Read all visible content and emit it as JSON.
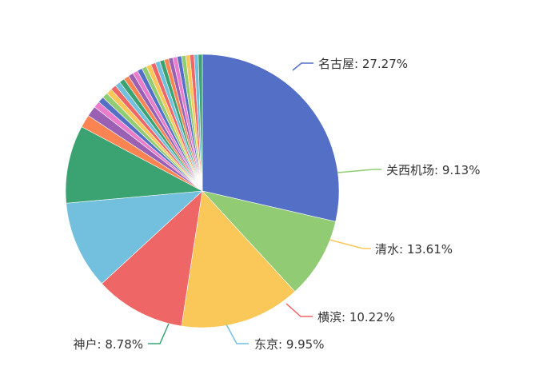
{
  "chart_data": {
    "type": "pie",
    "title": "",
    "slices": [
      {
        "label": "名古屋",
        "percent": 27.27,
        "display": "名古屋: 27.27%",
        "color": "#5470c6"
      },
      {
        "label": "关西机场",
        "percent": 9.13,
        "display": "关西机场: 9.13%",
        "color": "#91cc75"
      },
      {
        "label": "清水",
        "percent": 13.61,
        "display": "清水: 13.61%",
        "color": "#fac858"
      },
      {
        "label": "横滨",
        "percent": 10.22,
        "display": "横滨: 10.22%",
        "color": "#ee6666"
      },
      {
        "label": "东京",
        "percent": 9.95,
        "display": "东京: 9.95%",
        "color": "#73c0de"
      },
      {
        "label": "神户",
        "percent": 8.78,
        "display": "神户: 8.78%",
        "color": "#3ba272"
      },
      {
        "percent": 1.45,
        "color": "#fc8452"
      },
      {
        "percent": 1.18,
        "color": "#9a60b4"
      },
      {
        "percent": 0.73,
        "color": "#ea7ccc"
      },
      {
        "percent": 0.68,
        "color": "#5470c6"
      },
      {
        "percent": 0.66,
        "color": "#91cc75"
      },
      {
        "percent": 0.64,
        "color": "#fac858"
      },
      {
        "percent": 0.62,
        "color": "#ee6666"
      },
      {
        "percent": 0.61,
        "color": "#73c0de"
      },
      {
        "percent": 0.6,
        "color": "#3ba272"
      },
      {
        "percent": 0.59,
        "color": "#fc8452"
      },
      {
        "percent": 0.58,
        "color": "#9a60b4"
      },
      {
        "percent": 0.57,
        "color": "#ea7ccc"
      },
      {
        "percent": 0.56,
        "color": "#5470c6"
      },
      {
        "percent": 0.55,
        "color": "#91cc75"
      },
      {
        "percent": 0.54,
        "color": "#fac858"
      },
      {
        "percent": 0.53,
        "color": "#ee6666"
      },
      {
        "percent": 0.52,
        "color": "#73c0de"
      },
      {
        "percent": 0.51,
        "color": "#3ba272"
      },
      {
        "percent": 0.5,
        "color": "#fc8452"
      },
      {
        "percent": 0.49,
        "color": "#9a60b4"
      },
      {
        "percent": 0.49,
        "color": "#ea7ccc"
      },
      {
        "percent": 0.48,
        "color": "#5470c6"
      },
      {
        "percent": 0.48,
        "color": "#91cc75"
      },
      {
        "percent": 0.47,
        "color": "#fac858"
      },
      {
        "percent": 0.47,
        "color": "#ee6666"
      },
      {
        "percent": 0.46,
        "color": "#73c0de"
      },
      {
        "percent": 0.46,
        "color": "#3ba272"
      }
    ]
  }
}
